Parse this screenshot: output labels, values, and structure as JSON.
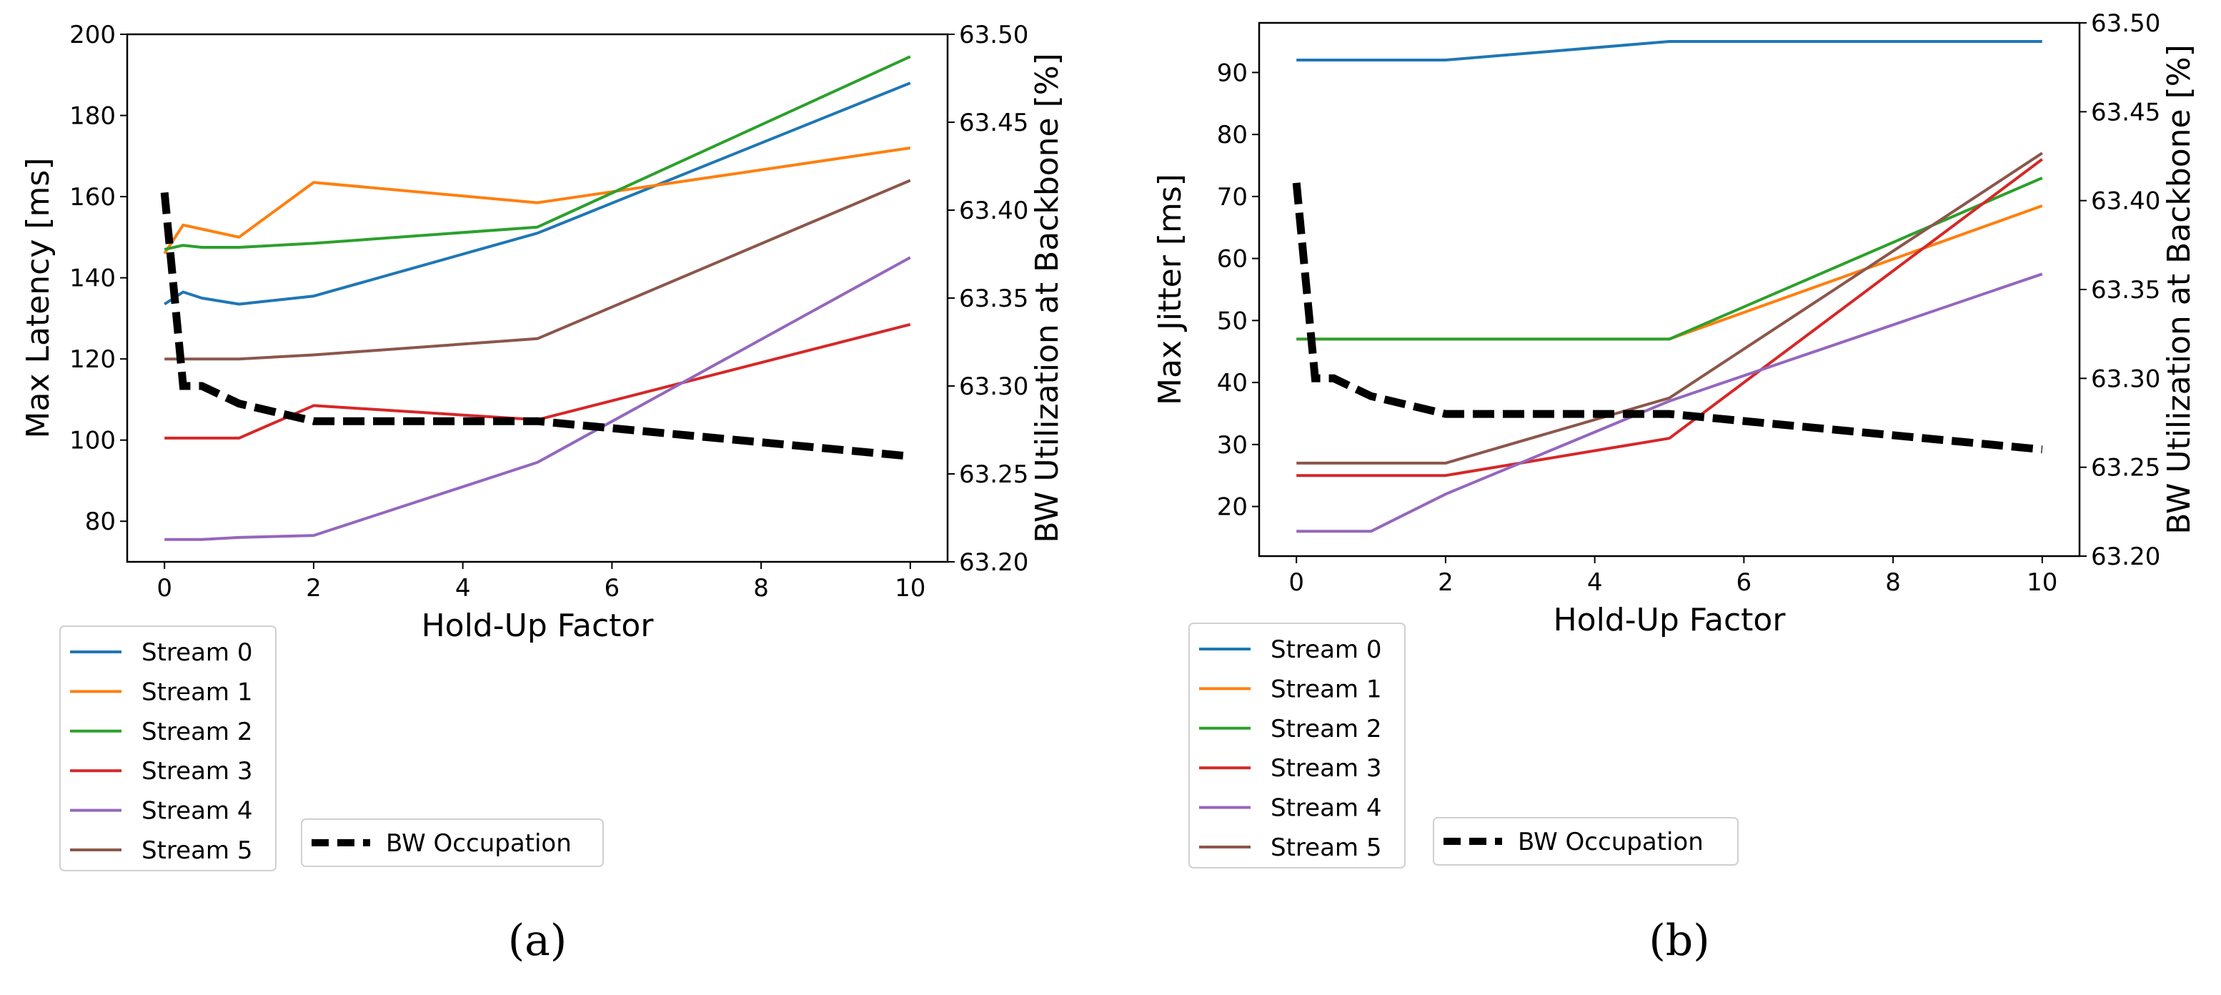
{
  "chart_data": [
    {
      "type": "line",
      "panel_label": "(a)",
      "xlabel": "Hold-Up Factor",
      "ylabel": "Max Latency [ms]",
      "y2label": "BW Utilization at Backbone [%]",
      "xlim": [
        -0.5,
        10.5
      ],
      "ylim": [
        70,
        200
      ],
      "y2lim": [
        63.2,
        63.5
      ],
      "xticks": [
        "0",
        "2",
        "4",
        "6",
        "8",
        "10"
      ],
      "yticks": [
        "80",
        "100",
        "120",
        "140",
        "160",
        "180",
        "200"
      ],
      "y2ticks": [
        "63.20",
        "63.25",
        "63.30",
        "63.35",
        "63.40",
        "63.45",
        "63.50"
      ],
      "x": [
        0,
        0.25,
        0.5,
        1,
        2,
        5,
        10
      ],
      "series": [
        {
          "name": "Stream 0",
          "color": "#1f77b4",
          "values": [
            133.5,
            136.5,
            135,
            133.5,
            135.5,
            151,
            188
          ]
        },
        {
          "name": "Stream 1",
          "color": "#ff7f0e",
          "values": [
            146,
            153,
            152,
            150,
            163.5,
            158.5,
            172
          ]
        },
        {
          "name": "Stream 2",
          "color": "#2ca02c",
          "values": [
            147,
            148,
            147.5,
            147.5,
            148.5,
            152.5,
            194.5
          ]
        },
        {
          "name": "Stream 3",
          "color": "#d62728",
          "values": [
            100.5,
            100.5,
            100.5,
            100.5,
            108.5,
            105,
            128.5
          ]
        },
        {
          "name": "Stream 4",
          "color": "#9467bd",
          "values": [
            75.5,
            75.5,
            75.5,
            76,
            76.5,
            94.5,
            145
          ]
        },
        {
          "name": "Stream 5",
          "color": "#8c564b",
          "values": [
            120,
            120,
            120,
            120,
            121,
            125,
            164
          ]
        }
      ],
      "secondary_series": {
        "name": "BW Occupation",
        "color": "#000000",
        "style": "dashed",
        "x": [
          0,
          0.25,
          0.5,
          1,
          2,
          5,
          10
        ],
        "values": [
          63.41,
          63.3,
          63.3,
          63.29,
          63.28,
          63.28,
          63.26
        ]
      },
      "legend_placement": "below-left",
      "grid": false
    },
    {
      "type": "line",
      "panel_label": "(b)",
      "xlabel": "Hold-Up Factor",
      "ylabel": "Max Jitter [ms]",
      "y2label": "BW Utilization at Backbone [%]",
      "xlim": [
        -0.5,
        10.5
      ],
      "ylim": [
        12,
        98
      ],
      "y2lim": [
        63.2,
        63.5
      ],
      "xticks": [
        "0",
        "2",
        "4",
        "6",
        "8",
        "10"
      ],
      "yticks": [
        "20",
        "30",
        "40",
        "50",
        "60",
        "70",
        "80",
        "90"
      ],
      "y2ticks": [
        "63.20",
        "63.25",
        "63.30",
        "63.35",
        "63.40",
        "63.45",
        "63.50"
      ],
      "x": [
        0,
        0.25,
        0.5,
        1,
        2,
        5,
        10
      ],
      "series": [
        {
          "name": "Stream 0",
          "color": "#1f77b4",
          "values": [
            92,
            92,
            92,
            92,
            92,
            95,
            95
          ]
        },
        {
          "name": "Stream 1",
          "color": "#ff7f0e",
          "values": [
            47,
            47,
            47,
            47,
            47,
            47,
            68.5
          ]
        },
        {
          "name": "Stream 2",
          "color": "#2ca02c",
          "values": [
            47,
            47,
            47,
            47,
            47,
            47,
            73
          ]
        },
        {
          "name": "Stream 3",
          "color": "#d62728",
          "values": [
            25,
            25,
            25,
            25,
            25,
            31,
            76
          ]
        },
        {
          "name": "Stream 4",
          "color": "#9467bd",
          "values": [
            16,
            16,
            16,
            16,
            22,
            37,
            57.5
          ]
        },
        {
          "name": "Stream 5",
          "color": "#8c564b",
          "values": [
            27,
            27,
            27,
            27,
            27,
            37.5,
            77
          ]
        }
      ],
      "secondary_series": {
        "name": "BW Occupation",
        "color": "#000000",
        "style": "dashed",
        "x": [
          0,
          0.25,
          0.5,
          1,
          2,
          5,
          10
        ],
        "values": [
          63.41,
          63.3,
          63.3,
          63.29,
          63.28,
          63.28,
          63.26
        ]
      },
      "legend_placement": "below-left",
      "grid": false
    }
  ]
}
